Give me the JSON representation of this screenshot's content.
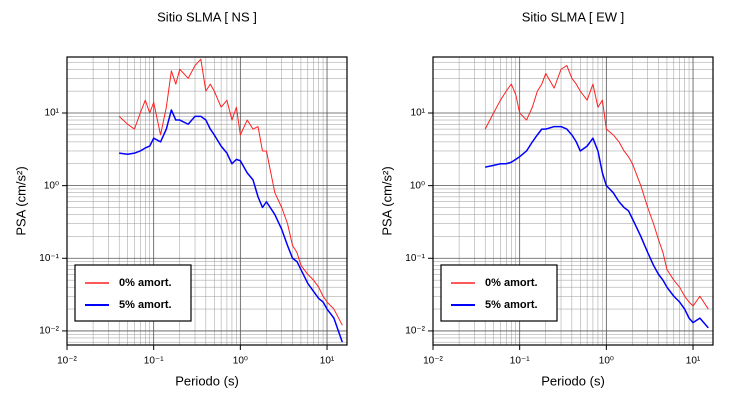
{
  "chart_data": [
    {
      "type": "line",
      "title": "Sitio SLMA [ NS ]",
      "x_label": "Periodo (s)",
      "y_label": "PSA (cm/s²)",
      "xlog": true,
      "ylog": true,
      "grid": true,
      "legend": "lower left",
      "xlim": [
        0.01,
        17
      ],
      "ylim": [
        0.0064,
        59
      ],
      "xticks": [
        {
          "value": 0.01,
          "label": "10⁻²"
        },
        {
          "value": 0.1,
          "label": "10⁻¹"
        },
        {
          "value": 1,
          "label": "10⁰"
        },
        {
          "value": 10,
          "label": "10¹"
        }
      ],
      "yticks": [
        {
          "value": 0.01,
          "label": "10⁻²"
        },
        {
          "value": 0.1,
          "label": "10⁻¹"
        },
        {
          "value": 1,
          "label": "10⁰"
        },
        {
          "value": 10,
          "label": "10¹"
        }
      ],
      "x": [
        0.04,
        0.05,
        0.06,
        0.07,
        0.08,
        0.09,
        0.1,
        0.12,
        0.14,
        0.16,
        0.18,
        0.2,
        0.25,
        0.3,
        0.35,
        0.4,
        0.45,
        0.5,
        0.6,
        0.7,
        0.8,
        0.9,
        1.0,
        1.2,
        1.4,
        1.6,
        1.8,
        2,
        2.5,
        3,
        3.5,
        4,
        4.5,
        5,
        6,
        7,
        8,
        9,
        10,
        12,
        15
      ],
      "series": [
        {
          "name": "0% amort.",
          "color": "#ff2020",
          "width": 1,
          "values": [
            9,
            7,
            6,
            10,
            15,
            10,
            14,
            5,
            12,
            38,
            25,
            40,
            30,
            45,
            55,
            20,
            25,
            20,
            12,
            15,
            8,
            12,
            5,
            8,
            6,
            6.5,
            3,
            3,
            0.8,
            0.5,
            0.3,
            0.15,
            0.12,
            0.08,
            0.06,
            0.05,
            0.04,
            0.03,
            0.025,
            0.02,
            0.012
          ]
        },
        {
          "name": "5% amort.",
          "color": "#0000ff",
          "width": 1.5,
          "values": [
            2.8,
            2.7,
            2.8,
            3,
            3.3,
            3.5,
            4.5,
            4,
            6,
            11,
            8,
            8,
            7,
            9,
            9,
            8,
            6,
            5,
            3.5,
            2.8,
            2,
            2.3,
            2.2,
            1.5,
            1.2,
            0.7,
            0.5,
            0.6,
            0.4,
            0.25,
            0.15,
            0.1,
            0.09,
            0.07,
            0.045,
            0.035,
            0.028,
            0.025,
            0.02,
            0.015,
            0.007
          ]
        }
      ]
    },
    {
      "type": "line",
      "title": "Sitio SLMA [ EW ]",
      "x_label": "Periodo (s)",
      "y_label": "PSA (cm/s²)",
      "xlog": true,
      "ylog": true,
      "grid": true,
      "legend": "lower left",
      "xlim": [
        0.01,
        17
      ],
      "ylim": [
        0.0064,
        59
      ],
      "xticks": [
        {
          "value": 0.01,
          "label": "10⁻²"
        },
        {
          "value": 0.1,
          "label": "10⁻¹"
        },
        {
          "value": 1,
          "label": "10⁰"
        },
        {
          "value": 10,
          "label": "10¹"
        }
      ],
      "yticks": [
        {
          "value": 0.01,
          "label": "10⁻²"
        },
        {
          "value": 0.1,
          "label": "10⁻¹"
        },
        {
          "value": 1,
          "label": "10⁰"
        },
        {
          "value": 10,
          "label": "10¹"
        }
      ],
      "x": [
        0.04,
        0.05,
        0.06,
        0.07,
        0.08,
        0.09,
        0.1,
        0.12,
        0.14,
        0.16,
        0.18,
        0.2,
        0.25,
        0.3,
        0.35,
        0.4,
        0.45,
        0.5,
        0.6,
        0.7,
        0.8,
        0.9,
        1.0,
        1.2,
        1.4,
        1.6,
        1.8,
        2,
        2.5,
        3,
        3.5,
        4,
        4.5,
        5,
        6,
        7,
        8,
        9,
        10,
        12,
        15
      ],
      "series": [
        {
          "name": "0% amort.",
          "color": "#ff2020",
          "width": 1,
          "values": [
            6,
            10,
            15,
            20,
            25,
            18,
            10,
            8,
            12,
            20,
            25,
            35,
            22,
            40,
            45,
            30,
            25,
            20,
            15,
            25,
            12,
            15,
            6,
            5,
            4,
            3,
            2.5,
            2,
            1,
            0.5,
            0.3,
            0.18,
            0.12,
            0.07,
            0.05,
            0.04,
            0.03,
            0.025,
            0.022,
            0.03,
            0.02
          ]
        },
        {
          "name": "5% amort.",
          "color": "#0000ff",
          "width": 1.5,
          "values": [
            1.8,
            1.9,
            2,
            2,
            2.1,
            2.3,
            2.5,
            3,
            4,
            5,
            6,
            6,
            6.5,
            6.5,
            6,
            5,
            4,
            3,
            3.5,
            4.5,
            3,
            1.5,
            1,
            0.8,
            0.6,
            0.5,
            0.45,
            0.35,
            0.2,
            0.12,
            0.08,
            0.06,
            0.05,
            0.04,
            0.03,
            0.025,
            0.02,
            0.015,
            0.013,
            0.015,
            0.011
          ]
        }
      ]
    }
  ]
}
